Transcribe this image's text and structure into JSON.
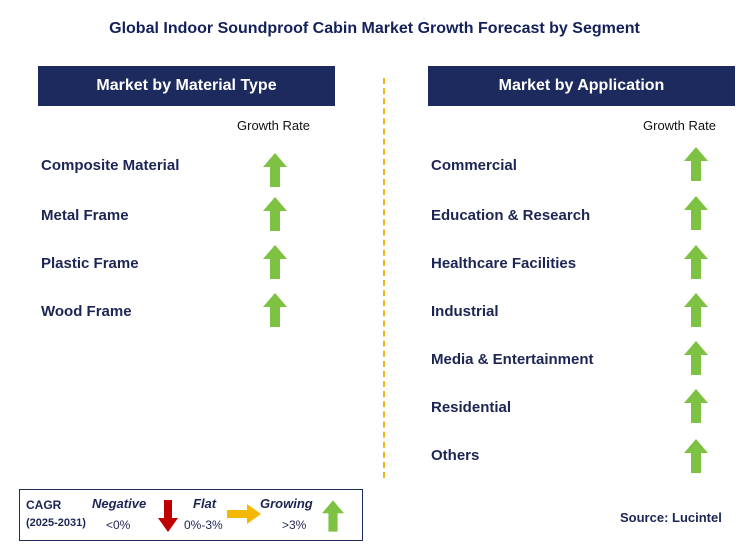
{
  "title": "Global Indoor Soundproof Cabin Market Growth Forecast by Segment",
  "left_panel": {
    "header": "Market by Material Type",
    "column_label": "Growth Rate",
    "items": [
      {
        "label": "Composite Material",
        "trend": "growing"
      },
      {
        "label": "Metal Frame",
        "trend": "growing"
      },
      {
        "label": "Plastic Frame",
        "trend": "growing"
      },
      {
        "label": "Wood Frame",
        "trend": "growing"
      }
    ]
  },
  "right_panel": {
    "header": "Market by Application",
    "column_label": "Growth Rate",
    "items": [
      {
        "label": "Commercial",
        "trend": "growing"
      },
      {
        "label": "Education & Research",
        "trend": "growing"
      },
      {
        "label": "Healthcare Facilities",
        "trend": "growing"
      },
      {
        "label": "Industrial",
        "trend": "growing"
      },
      {
        "label": "Media & Entertainment",
        "trend": "growing"
      },
      {
        "label": "Residential",
        "trend": "growing"
      },
      {
        "label": "Others",
        "trend": "growing"
      }
    ]
  },
  "legend": {
    "cagr_label": "CAGR",
    "period": "(2025-2031)",
    "negative_label": "Negative",
    "negative_range": "<0%",
    "flat_label": "Flat",
    "flat_range": "0%-3%",
    "growing_label": "Growing",
    "growing_range": ">3%"
  },
  "source": "Source: Lucintel",
  "colors": {
    "header_bg": "#1c2a5e",
    "growing": "#7dc242",
    "negative": "#c00000",
    "flat": "#f5b800",
    "divider": "#f2b21a"
  }
}
